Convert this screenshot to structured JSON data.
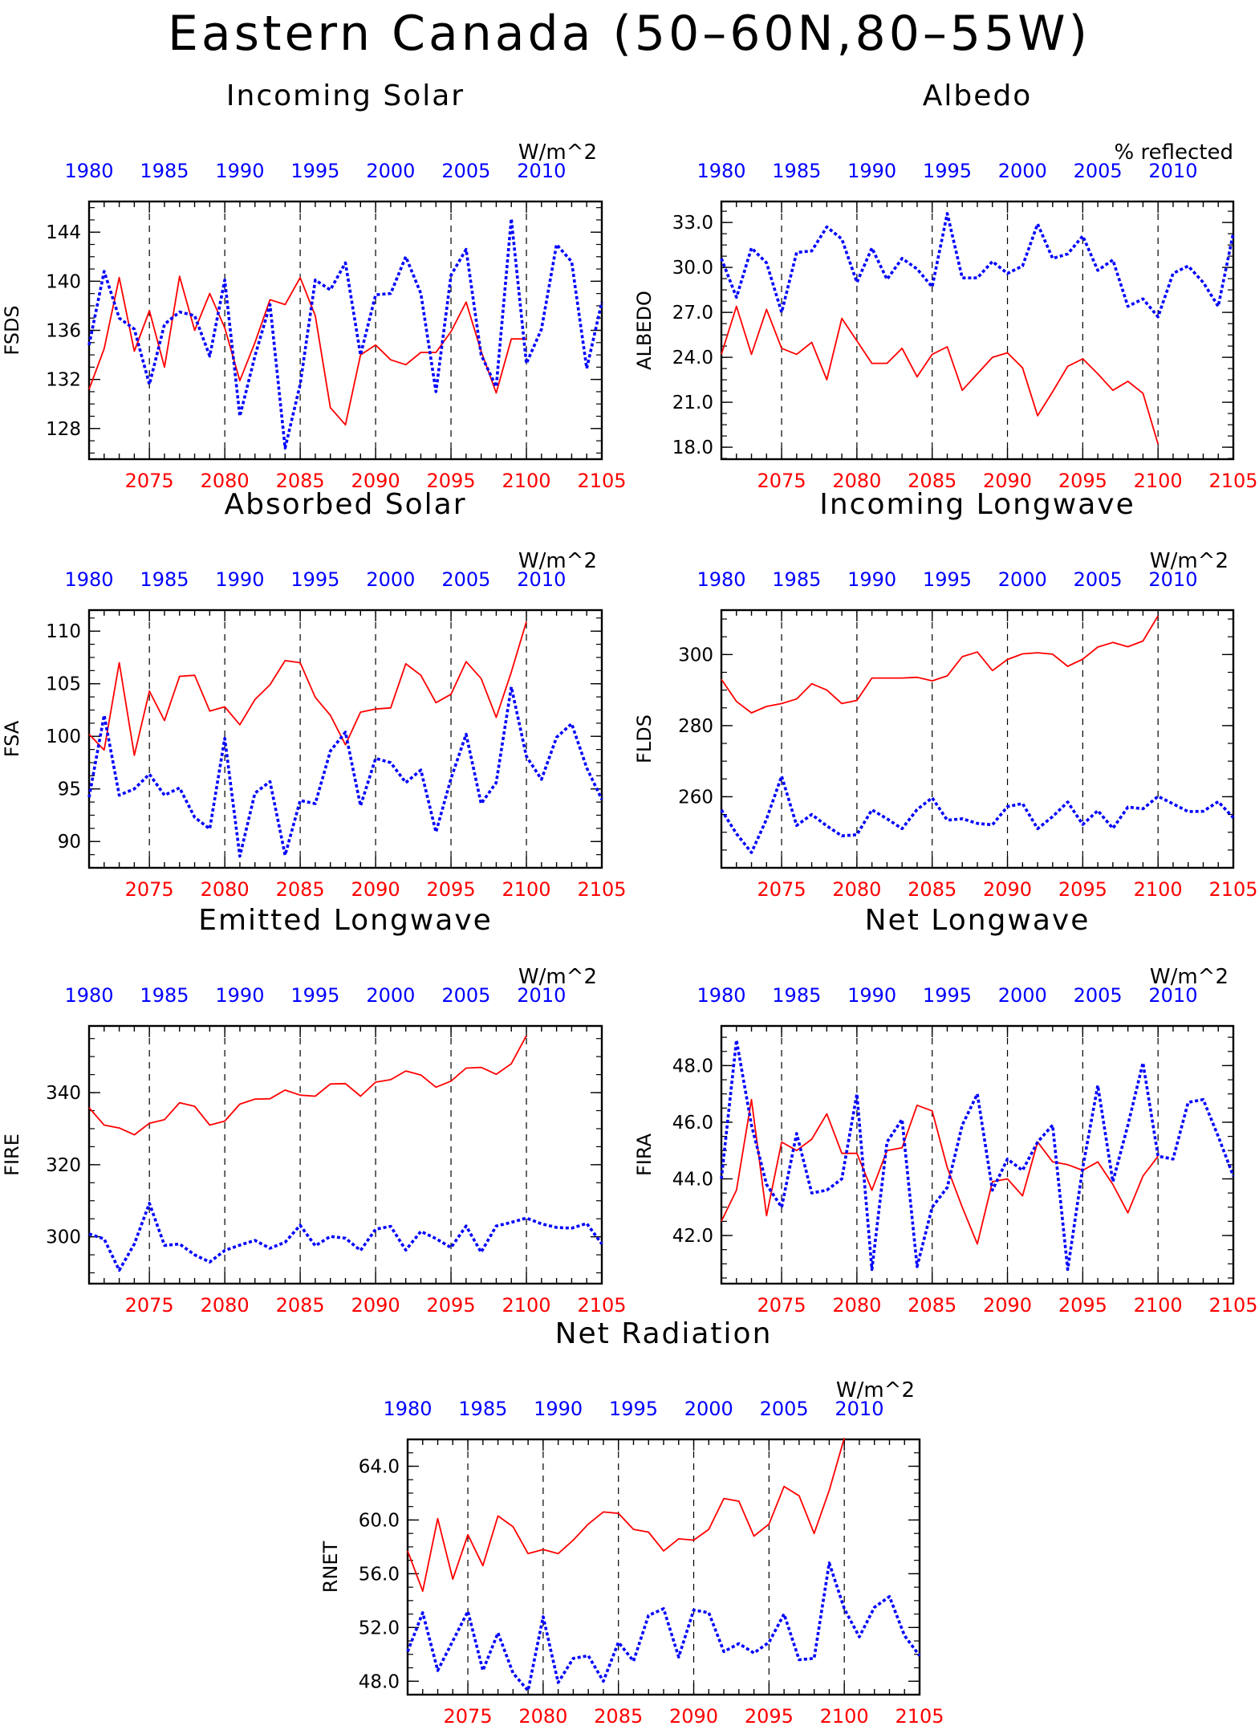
{
  "page_title": "Eastern Canada (50–60N,80–55W)",
  "colors": {
    "future": "#ff0000",
    "historical": "#0000ff",
    "axis": "#000000"
  },
  "chart_data": [
    {
      "type": "line",
      "title": "Incoming Solar",
      "units": "W/m^2",
      "ylabel": "FSDS",
      "ylim": [
        125.5,
        146.5
      ],
      "yticks": [
        "128",
        "132",
        "136",
        "140",
        "144"
      ],
      "bottom_xlabels": [
        "2075",
        "2080",
        "2085",
        "2090",
        "2095",
        "2100",
        "2105"
      ],
      "top_xlabels": [
        "1980",
        "1985",
        "1990",
        "1995",
        "2000",
        "2005",
        "2010"
      ],
      "series": [
        {
          "color": "red",
          "style": "solid",
          "x_start": 2071,
          "values": [
            131.2,
            134.5,
            140.3,
            134.3,
            137.6,
            133.0,
            140.4,
            136.0,
            139.0,
            136.2,
            131.9,
            135.0,
            138.5,
            138.1,
            140.3,
            137.2,
            129.7,
            128.3,
            134.0,
            134.8,
            133.6,
            133.2,
            134.2,
            134.2,
            135.9,
            138.3,
            134.3,
            130.9,
            135.3,
            135.3
          ]
        },
        {
          "color": "blue",
          "style": "dotted",
          "x_start": 1980,
          "values": [
            134.8,
            140.8,
            137.0,
            136.1,
            131.6,
            136.5,
            137.5,
            137.2,
            133.9,
            140.1,
            129.0,
            133.9,
            138.1,
            126.4,
            131.6,
            140.1,
            139.3,
            141.5,
            134.0,
            138.9,
            139.0,
            142.0,
            139.0,
            131.0,
            140.5,
            142.6,
            134.0,
            131.4,
            145.1,
            133.3,
            136.1,
            143.0,
            141.6,
            132.9,
            138.3
          ]
        }
      ]
    },
    {
      "type": "line",
      "title": "Albedo",
      "units": "% reflected",
      "ylabel": "ALBEDO",
      "ylim": [
        17.2,
        34.4
      ],
      "yticks": [
        "18.0",
        "21.0",
        "24.0",
        "27.0",
        "30.0",
        "33.0"
      ],
      "bottom_xlabels": [
        "2075",
        "2080",
        "2085",
        "2090",
        "2095",
        "2100",
        "2105"
      ],
      "top_xlabels": [
        "1980",
        "1985",
        "1990",
        "1995",
        "2000",
        "2005",
        "2010"
      ],
      "series": [
        {
          "color": "red",
          "style": "solid",
          "x_start": 2071,
          "values": [
            24.2,
            27.4,
            24.2,
            27.2,
            24.6,
            24.2,
            25.0,
            22.5,
            26.6,
            25.1,
            23.6,
            23.6,
            24.6,
            22.7,
            24.2,
            24.7,
            21.8,
            22.9,
            24.0,
            24.3,
            23.3,
            20.1,
            21.7,
            23.4,
            23.9,
            22.9,
            21.8,
            22.4,
            21.6,
            18.2
          ]
        },
        {
          "color": "blue",
          "style": "dotted",
          "x_start": 1980,
          "values": [
            30.6,
            28.0,
            31.3,
            30.3,
            27.0,
            31.0,
            31.1,
            32.7,
            31.9,
            29.0,
            31.3,
            29.2,
            30.6,
            29.9,
            28.7,
            33.6,
            29.3,
            29.3,
            30.4,
            29.6,
            30.1,
            32.9,
            30.6,
            30.9,
            32.1,
            29.8,
            30.5,
            27.4,
            27.9,
            26.7,
            29.6,
            30.1,
            29.0,
            27.4,
            32.3
          ]
        }
      ]
    },
    {
      "type": "line",
      "title": "Absorbed Solar",
      "units": "W/m^2",
      "ylabel": "FSA",
      "ylim": [
        87.5,
        112.0
      ],
      "yticks": [
        "90",
        "95",
        "100",
        "105",
        "110"
      ],
      "bottom_xlabels": [
        "2075",
        "2080",
        "2085",
        "2090",
        "2095",
        "2100",
        "2105"
      ],
      "top_xlabels": [
        "1980",
        "1985",
        "1990",
        "1995",
        "2000",
        "2005",
        "2010"
      ],
      "series": [
        {
          "color": "red",
          "style": "solid",
          "x_start": 2071,
          "values": [
            100.2,
            98.7,
            107.0,
            98.2,
            104.3,
            101.5,
            105.7,
            105.8,
            102.4,
            102.8,
            101.1,
            103.5,
            104.9,
            107.2,
            107.0,
            103.7,
            102.0,
            99.2,
            102.3,
            102.6,
            102.7,
            106.9,
            105.8,
            103.2,
            104.0,
            107.1,
            105.5,
            101.8,
            106.1,
            110.9
          ]
        },
        {
          "color": "blue",
          "style": "dotted",
          "x_start": 1980,
          "values": [
            94.2,
            102.0,
            94.4,
            95.0,
            96.4,
            94.4,
            95.1,
            92.3,
            91.2,
            99.8,
            88.6,
            94.6,
            95.7,
            88.7,
            93.9,
            93.6,
            98.6,
            100.4,
            93.4,
            97.9,
            97.5,
            95.6,
            96.8,
            90.9,
            96.0,
            100.2,
            93.6,
            95.6,
            104.7,
            98.1,
            95.9,
            99.9,
            101.2,
            97.0,
            94.0
          ]
        }
      ]
    },
    {
      "type": "line",
      "title": "Incoming Longwave",
      "units": "W/m^2",
      "ylabel": "FLDS",
      "ylim": [
        240.0,
        312.5
      ],
      "yticks": [
        "260",
        "280",
        "300"
      ],
      "bottom_xlabels": [
        "2075",
        "2080",
        "2085",
        "2090",
        "2095",
        "2100",
        "2105"
      ],
      "top_xlabels": [
        "1980",
        "1985",
        "1990",
        "1995",
        "2000",
        "2005",
        "2010"
      ],
      "series": [
        {
          "color": "red",
          "style": "solid",
          "x_start": 2071,
          "values": [
            293.0,
            286.8,
            283.6,
            285.4,
            286.2,
            287.5,
            291.8,
            290.0,
            286.2,
            287.1,
            293.4,
            293.4,
            293.4,
            293.6,
            292.6,
            294.0,
            299.4,
            300.7,
            295.5,
            298.6,
            300.2,
            300.5,
            300.1,
            296.7,
            298.7,
            302.1,
            303.4,
            302.2,
            303.8,
            310.9
          ]
        },
        {
          "color": "blue",
          "style": "dotted",
          "x_start": 1980,
          "values": [
            256.3,
            249.6,
            244.3,
            253.7,
            265.8,
            251.9,
            255.0,
            251.8,
            249.0,
            249.3,
            256.3,
            253.8,
            251.0,
            256.4,
            259.7,
            253.4,
            253.8,
            252.5,
            252.1,
            257.2,
            258.1,
            251.0,
            254.4,
            258.5,
            252.2,
            256.1,
            251.1,
            257.1,
            256.6,
            260.1,
            258.0,
            255.8,
            255.9,
            258.6,
            254.1
          ]
        }
      ]
    },
    {
      "type": "line",
      "title": "Emitted Longwave",
      "units": "W/m^2",
      "ylabel": "FIRE",
      "ylim": [
        287.0,
        358.5
      ],
      "yticks": [
        "300",
        "320",
        "340"
      ],
      "bottom_xlabels": [
        "2075",
        "2080",
        "2085",
        "2090",
        "2095",
        "2100",
        "2105"
      ],
      "top_xlabels": [
        "1980",
        "1985",
        "1990",
        "1995",
        "2000",
        "2005",
        "2010"
      ],
      "series": [
        {
          "color": "red",
          "style": "solid",
          "x_start": 2071,
          "values": [
            335.8,
            331.0,
            330.2,
            328.3,
            331.5,
            332.5,
            337.2,
            336.2,
            331.0,
            332.1,
            336.8,
            338.2,
            338.3,
            340.7,
            339.3,
            339.0,
            342.4,
            342.5,
            339.0,
            342.9,
            343.6,
            346.0,
            344.9,
            341.5,
            343.2,
            346.8,
            347.0,
            345.1,
            348.0,
            355.8
          ]
        },
        {
          "color": "blue",
          "style": "dotted",
          "x_start": 1980,
          "values": [
            300.8,
            299.4,
            290.7,
            298.0,
            309.3,
            297.6,
            298.0,
            295.0,
            293.0,
            296.2,
            297.7,
            299.0,
            296.8,
            298.5,
            303.2,
            297.5,
            300.1,
            299.6,
            296.2,
            302.1,
            302.9,
            296.3,
            301.5,
            299.5,
            297.0,
            303.0,
            295.7,
            303.0,
            304.0,
            305.2,
            303.6,
            302.6,
            302.4,
            303.7,
            298.0
          ]
        }
      ]
    },
    {
      "type": "line",
      "title": "Net Longwave",
      "units": "W/m^2",
      "ylabel": "FIRA",
      "ylim": [
        40.3,
        49.4
      ],
      "yticks": [
        "42.0",
        "44.0",
        "46.0",
        "48.0"
      ],
      "bottom_xlabels": [
        "2075",
        "2080",
        "2085",
        "2090",
        "2095",
        "2100",
        "2105"
      ],
      "top_xlabels": [
        "1980",
        "1985",
        "1990",
        "1995",
        "2000",
        "2005",
        "2010"
      ],
      "series": [
        {
          "color": "red",
          "style": "solid",
          "x_start": 2071,
          "values": [
            42.5,
            43.6,
            46.8,
            42.7,
            45.3,
            45.0,
            45.4,
            46.3,
            44.9,
            44.9,
            43.6,
            45.0,
            45.1,
            46.6,
            46.4,
            44.4,
            43.0,
            41.7,
            43.9,
            44.0,
            43.4,
            45.3,
            44.6,
            44.5,
            44.3,
            44.6,
            43.8,
            42.8,
            44.1,
            44.8
          ]
        },
        {
          "color": "blue",
          "style": "dotted",
          "x_start": 1980,
          "values": [
            44.0,
            48.9,
            45.9,
            43.8,
            43.0,
            45.6,
            43.5,
            43.6,
            44.0,
            47.0,
            40.8,
            45.3,
            46.1,
            40.9,
            43.0,
            43.7,
            45.9,
            47.0,
            43.6,
            44.7,
            44.3,
            45.3,
            45.9,
            40.8,
            44.4,
            47.3,
            43.9,
            45.9,
            48.1,
            44.8,
            44.7,
            46.7,
            46.8,
            45.5,
            44.1
          ]
        }
      ]
    },
    {
      "type": "line",
      "title": "Net Radiation",
      "units": "W/m^2",
      "ylabel": "RNET",
      "ylim": [
        47.0,
        66.0
      ],
      "yticks": [
        "48.0",
        "52.0",
        "56.0",
        "60.0",
        "64.0"
      ],
      "bottom_xlabels": [
        "2075",
        "2080",
        "2085",
        "2090",
        "2095",
        "2100",
        "2105"
      ],
      "top_xlabels": [
        "1980",
        "1985",
        "1990",
        "1995",
        "2000",
        "2005",
        "2010"
      ],
      "series": [
        {
          "color": "red",
          "style": "solid",
          "x_start": 2071,
          "values": [
            57.7,
            54.7,
            60.1,
            55.6,
            58.9,
            56.6,
            60.3,
            59.5,
            57.5,
            57.8,
            57.5,
            58.5,
            59.7,
            60.6,
            60.5,
            59.3,
            59.1,
            57.7,
            58.6,
            58.5,
            59.3,
            61.6,
            61.4,
            58.8,
            59.7,
            62.5,
            61.8,
            59.0,
            62.2,
            66.1
          ]
        },
        {
          "color": "blue",
          "style": "dotted",
          "x_start": 1980,
          "values": [
            50.2,
            53.1,
            48.8,
            51.0,
            53.2,
            48.8,
            51.6,
            48.6,
            47.3,
            52.8,
            47.9,
            49.7,
            49.9,
            48.0,
            50.9,
            49.5,
            52.9,
            53.4,
            49.8,
            53.3,
            53.1,
            50.2,
            50.8,
            50.1,
            50.9,
            53.0,
            49.6,
            49.7,
            56.8,
            53.4,
            51.3,
            53.5,
            54.3,
            51.4,
            49.9
          ]
        }
      ]
    }
  ]
}
